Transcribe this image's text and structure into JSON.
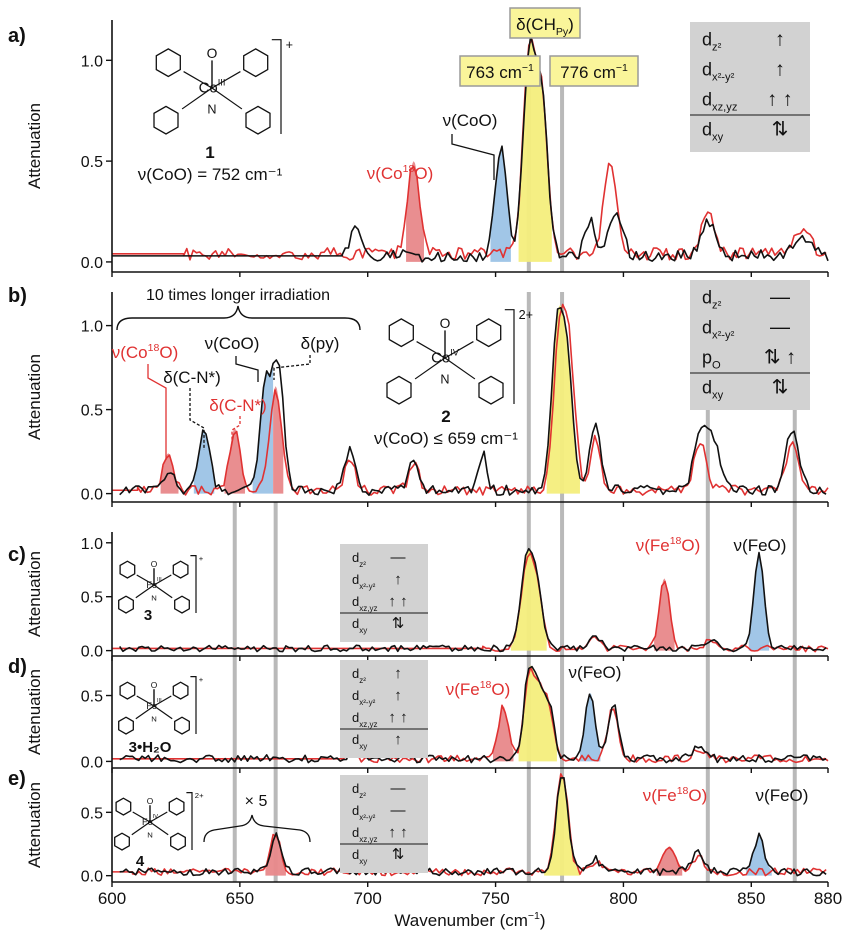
{
  "figure": {
    "x_axis": {
      "label_main": "Wavenumber (cm",
      "label_sup": "−1",
      "label_close": ")",
      "range": [
        600,
        880
      ],
      "ticks": [
        600,
        650,
        700,
        750,
        800,
        850,
        880
      ]
    },
    "y_label": "Attenuation",
    "colors": {
      "black": "#111111",
      "red": "#e03232",
      "blue_fill": "#9cc3e6",
      "red_fill": "#e8888a",
      "yellow_fill": "#f4ee7c",
      "guide": "#b9b9b9",
      "box": "#d2d2d2"
    },
    "guide_lines_top": [
      763,
      776
    ],
    "guide_lines_bottom": [
      648,
      664,
      763,
      776,
      833,
      867
    ],
    "callouts": {
      "delta_ch": "δ(CH",
      "delta_ch_sub": "Py",
      "delta_ch_close": ")",
      "b763": "763 cm",
      "b776": "776 cm",
      "sup_m1": "−1"
    }
  },
  "panels": [
    {
      "id": "a",
      "label": "a)",
      "yticks": [
        0.0,
        0.5,
        1.0
      ],
      "compound": {
        "number": "1",
        "charge": "+",
        "metal": "Co",
        "ox": "III"
      },
      "equation": "ν(CoO) = 752 cm⁻¹",
      "annotations": [
        {
          "text": "ν(CoO)",
          "color": "black"
        },
        {
          "text": "ν(Co",
          "sup": "18",
          "after": "O)",
          "color": "red"
        }
      ],
      "orbitals": [
        {
          "label": "d",
          "sub": "z²",
          "occ": "↑"
        },
        {
          "label": "d",
          "sub": "x²-y²",
          "occ": "↑"
        },
        {
          "label": "d",
          "sub": "xz,yz",
          "occ": "↑ ↑"
        },
        {
          "label": "d",
          "sub": "xy",
          "occ": "⇅"
        }
      ]
    },
    {
      "id": "b",
      "label": "b)",
      "yticks": [
        0.0,
        0.5,
        1.0
      ],
      "compound": {
        "number": "2",
        "charge": "2+",
        "metal": "Co",
        "ox": "IV"
      },
      "equation": "ν(CoO) ≤ 659 cm⁻¹",
      "bracket_text": "10 times longer irradiation",
      "annotations": [
        {
          "text": "ν(Co",
          "sup": "18",
          "after": "O)",
          "color": "red"
        },
        {
          "text": "δ(C-N*)",
          "color": "black"
        },
        {
          "text": "δ(C-N*)",
          "color": "red"
        },
        {
          "text": "ν(CoO)",
          "color": "black"
        },
        {
          "text": "δ(py)",
          "color": "black"
        }
      ],
      "orbitals": [
        {
          "label": "d",
          "sub": "z²",
          "occ": "—"
        },
        {
          "label": "d",
          "sub": "x²-y²",
          "occ": "—"
        },
        {
          "label": "p",
          "sub": "O",
          "occ": "⇅ ↑"
        },
        {
          "label": "d",
          "sub": "xy",
          "occ": "⇅"
        }
      ]
    },
    {
      "id": "c",
      "label": "c)",
      "yticks": [
        0.0,
        0.5,
        1.0
      ],
      "compound": {
        "number": "3",
        "charge": "+",
        "metal": "Fe",
        "ox": "III"
      },
      "annotations": [
        {
          "text": "ν(Fe",
          "sup": "18",
          "after": "O)",
          "color": "red"
        },
        {
          "text": "ν(FeO)",
          "color": "black"
        }
      ],
      "orbitals": [
        {
          "label": "d",
          "sub": "z²",
          "occ": "—"
        },
        {
          "label": "d",
          "sub": "x²-y²",
          "occ": "↑"
        },
        {
          "label": "d",
          "sub": "xz,yz",
          "occ": "↑ ↑"
        },
        {
          "label": "d",
          "sub": "xy",
          "occ": "⇅"
        }
      ]
    },
    {
      "id": "d",
      "label": "d)",
      "yticks": [
        0.0,
        0.5
      ],
      "compound": {
        "number": "3•H₂O",
        "charge": "+",
        "metal": "Fe",
        "ox": "III"
      },
      "annotations": [
        {
          "text": "ν(Fe",
          "sup": "18",
          "after": "O)",
          "color": "red"
        },
        {
          "text": "ν(FeO)",
          "color": "black"
        }
      ],
      "orbitals": [
        {
          "label": "d",
          "sub": "z²",
          "occ": "↑"
        },
        {
          "label": "d",
          "sub": "x²-y²",
          "occ": "↑"
        },
        {
          "label": "d",
          "sub": "xz,yz",
          "occ": "↑ ↑"
        },
        {
          "label": "d",
          "sub": "xy",
          "occ": "↑"
        }
      ]
    },
    {
      "id": "e",
      "label": "e)",
      "yticks": [
        0.0,
        0.5
      ],
      "compound": {
        "number": "4",
        "charge": "2+",
        "metal": "Fe",
        "ox": "IV"
      },
      "multiplier": "× 5",
      "annotations": [
        {
          "text": "ν(Fe",
          "sup": "18",
          "after": "O)",
          "color": "red"
        },
        {
          "text": "ν(FeO)",
          "color": "black"
        }
      ],
      "orbitals": [
        {
          "label": "d",
          "sub": "z²",
          "occ": "—"
        },
        {
          "label": "d",
          "sub": "x²-y²",
          "occ": "—"
        },
        {
          "label": "d",
          "sub": "xz,yz",
          "occ": "↑ ↑"
        },
        {
          "label": "d",
          "sub": "xy",
          "occ": "⇅"
        }
      ]
    }
  ],
  "chart_data": [
    {
      "type": "line",
      "panel": "a",
      "xlabel": "Wavenumber (cm⁻¹)",
      "ylabel": "Attenuation",
      "xlim": [
        600,
        880
      ],
      "ylim": [
        -0.05,
        1.2
      ],
      "series": [
        {
          "color": "black",
          "baseline": 0.03,
          "start": 690,
          "peaks": [
            [
              695,
              0.15,
              2
            ],
            [
              752,
              0.53,
              2.3
            ],
            [
              763,
              0.97,
              2.3
            ],
            [
              768,
              0.8,
              2.3
            ],
            [
              787,
              0.17,
              2
            ],
            [
              797,
              0.23,
              2.5
            ],
            [
              833,
              0.18,
              2.5
            ],
            [
              870,
              0.1,
              3
            ]
          ]
        },
        {
          "color": "red",
          "baseline": 0.04,
          "start": 628,
          "peaks": [
            [
              718,
              0.46,
              2.3
            ],
            [
              763,
              0.97,
              2.3
            ],
            [
              768,
              0.8,
              2.3
            ],
            [
              794,
              0.38,
              2
            ],
            [
              797,
              0.2,
              2
            ],
            [
              833,
              0.2,
              2.5
            ],
            [
              870,
              0.12,
              3
            ]
          ]
        }
      ],
      "fills": [
        {
          "color": "red_fill",
          "from": 715,
          "to": 722
        },
        {
          "color": "blue_fill",
          "from": 748,
          "to": 756
        },
        {
          "color": "yellow_fill",
          "from": 759,
          "to": 772
        }
      ]
    },
    {
      "type": "line",
      "panel": "b",
      "xlabel": "Wavenumber (cm⁻¹)",
      "ylabel": "Attenuation",
      "xlim": [
        600,
        880
      ],
      "ylim": [
        -0.05,
        1.2
      ],
      "series": [
        {
          "color": "black",
          "baseline": 0.02,
          "start": 603,
          "peaks": [
            [
              622,
              0.12,
              2
            ],
            [
              636,
              0.35,
              2.2
            ],
            [
              660,
              0.62,
              2.2
            ],
            [
              665,
              0.73,
              2.2
            ],
            [
              693,
              0.25,
              2
            ],
            [
              718,
              0.17,
              2
            ],
            [
              745,
              0.22,
              1.5
            ],
            [
              774,
              0.88,
              2.3
            ],
            [
              778,
              0.7,
              2.3
            ],
            [
              789,
              0.4,
              2
            ],
            [
              830,
              0.32,
              2.5
            ],
            [
              835,
              0.3,
              2.5
            ],
            [
              866,
              0.36,
              2.5
            ]
          ]
        },
        {
          "color": "red",
          "baseline": 0.02,
          "start": 610,
          "peaks": [
            [
              622,
              0.22,
              2
            ],
            [
              648,
              0.37,
              2
            ],
            [
              664,
              0.62,
              2.2
            ],
            [
              693,
              0.18,
              2
            ],
            [
              718,
              0.15,
              2
            ],
            [
              775,
              0.9,
              2.3
            ],
            [
              779,
              0.72,
              2.3
            ],
            [
              789,
              0.3,
              2
            ],
            [
              830,
              0.28,
              2.5
            ],
            [
              866,
              0.28,
              2.5
            ]
          ]
        }
      ],
      "fills": [
        {
          "color": "red_fill",
          "from": 619,
          "to": 626
        },
        {
          "color": "blue_fill",
          "from": 632,
          "to": 640
        },
        {
          "color": "red_fill",
          "from": 644,
          "to": 652
        },
        {
          "color": "blue_fill",
          "from": 655,
          "to": 663
        },
        {
          "color": "red_fill",
          "from": 663,
          "to": 667
        },
        {
          "color": "yellow_fill",
          "from": 770,
          "to": 783
        }
      ]
    },
    {
      "type": "line",
      "panel": "c",
      "xlabel": "Wavenumber (cm⁻¹)",
      "ylabel": "Attenuation",
      "xlim": [
        600,
        880
      ],
      "ylim": [
        -0.05,
        1.1
      ],
      "series": [
        {
          "color": "black",
          "baseline": 0.02,
          "start": 603,
          "peaks": [
            [
              762,
              0.76,
              2.2
            ],
            [
              766,
              0.6,
              2.2
            ],
            [
              789,
              0.12,
              2
            ],
            [
              853,
              0.88,
              2
            ],
            [
              834,
              0.08,
              2
            ]
          ]
        },
        {
          "color": "red",
          "baseline": 0.02,
          "start": 745,
          "peaks": [
            [
              762,
              0.73,
              2.2
            ],
            [
              766,
              0.58,
              2.2
            ],
            [
              789,
              0.1,
              2
            ],
            [
              816,
              0.65,
              2
            ],
            [
              834,
              0.07,
              2
            ]
          ]
        }
      ],
      "fills": [
        {
          "color": "yellow_fill",
          "from": 756,
          "to": 770
        },
        {
          "color": "red_fill",
          "from": 812,
          "to": 820
        },
        {
          "color": "blue_fill",
          "from": 849,
          "to": 857
        }
      ]
    },
    {
      "type": "line",
      "panel": "d",
      "xlabel": "Wavenumber (cm⁻¹)",
      "ylabel": "Attenuation",
      "xlim": [
        600,
        880
      ],
      "ylim": [
        -0.05,
        0.8
      ],
      "series": [
        {
          "color": "black",
          "baseline": 0.02,
          "start": 603,
          "peaks": [
            [
              695,
              0.08,
              2
            ],
            [
              763,
              0.63,
              2
            ],
            [
              767,
              0.45,
              2
            ],
            [
              771,
              0.38,
              2
            ],
            [
              787,
              0.5,
              2
            ],
            [
              796,
              0.42,
              2
            ],
            [
              830,
              0.1,
              2.5
            ]
          ]
        },
        {
          "color": "red",
          "baseline": 0.02,
          "start": 690,
          "peaks": [
            [
              753,
              0.4,
              2
            ],
            [
              763,
              0.62,
              2
            ],
            [
              767,
              0.45,
              2
            ],
            [
              771,
              0.37,
              2
            ],
            [
              796,
              0.4,
              2
            ],
            [
              830,
              0.08,
              2.5
            ]
          ]
        }
      ],
      "fills": [
        {
          "color": "red_fill",
          "from": 749,
          "to": 757
        },
        {
          "color": "yellow_fill",
          "from": 759,
          "to": 774
        },
        {
          "color": "blue_fill",
          "from": 783,
          "to": 791
        }
      ]
    },
    {
      "type": "line",
      "panel": "e",
      "xlabel": "Wavenumber (cm⁻¹)",
      "ylabel": "Attenuation",
      "xlim": [
        600,
        880
      ],
      "ylim": [
        -0.05,
        0.85
      ],
      "series": [
        {
          "color": "black",
          "baseline": 0.03,
          "start": 603,
          "peaks": [
            [
              664,
              0.28,
              2
            ],
            [
              776,
              0.76,
              2.3
            ],
            [
              789,
              0.1,
              2
            ],
            [
              829,
              0.15,
              2.5
            ],
            [
              853,
              0.28,
              2
            ]
          ]
        },
        {
          "color": "red",
          "baseline": 0.03,
          "start": 608,
          "peaks": [
            [
              664,
              0.3,
              2
            ],
            [
              776,
              0.78,
              2.3
            ],
            [
              789,
              0.08,
              2
            ],
            [
              818,
              0.2,
              2.5
            ],
            [
              829,
              0.12,
              2.5
            ]
          ]
        }
      ],
      "fills": [
        {
          "color": "red_fill",
          "from": 660,
          "to": 668
        },
        {
          "color": "yellow_fill",
          "from": 769,
          "to": 783
        },
        {
          "color": "red_fill",
          "from": 813,
          "to": 823
        },
        {
          "color": "blue_fill",
          "from": 848,
          "to": 858
        }
      ]
    }
  ]
}
